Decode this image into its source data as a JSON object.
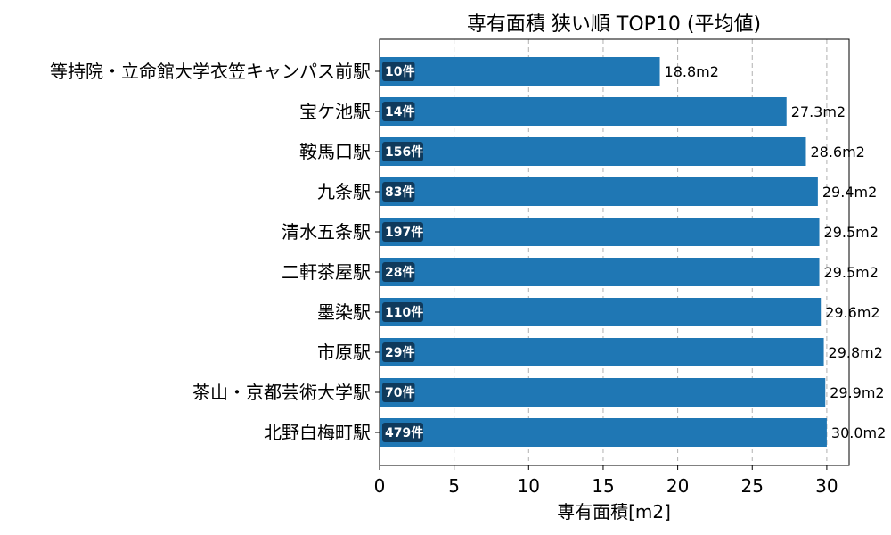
{
  "chart_data": {
    "type": "bar",
    "orientation": "horizontal",
    "title": "専有面積 狭い順 TOP10 (平均値)",
    "xlabel": "専有面積[m2]",
    "ylabel": "",
    "xlim": [
      0,
      31.5
    ],
    "xticks": [
      0,
      5,
      10,
      15,
      20,
      25,
      30
    ],
    "grid": "x-dashed",
    "bar_color": "#1f77b4",
    "count_badge_color": "#0f3a5c",
    "categories": [
      "等持院・立命館大学衣笠キャンパス前駅",
      "宝ケ池駅",
      "鞍馬口駅",
      "九条駅",
      "清水五条駅",
      "二軒茶屋駅",
      "墨染駅",
      "市原駅",
      "茶山・京都芸術大学駅",
      "北野白梅町駅"
    ],
    "values": [
      18.8,
      27.3,
      28.6,
      29.4,
      29.5,
      29.5,
      29.6,
      29.8,
      29.9,
      30.0
    ],
    "value_labels": [
      "18.8m2",
      "27.3m2",
      "28.6m2",
      "29.4m2",
      "29.5m2",
      "29.5m2",
      "29.6m2",
      "29.8m2",
      "29.9m2",
      "30.0m2"
    ],
    "counts": [
      "10件",
      "14件",
      "156件",
      "83件",
      "197件",
      "28件",
      "110件",
      "29件",
      "70件",
      "479件"
    ]
  }
}
